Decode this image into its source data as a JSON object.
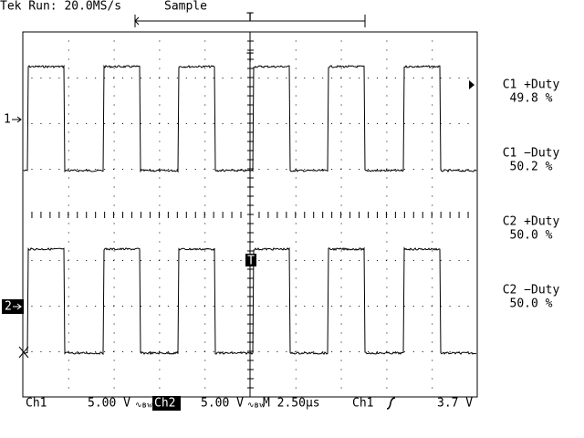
{
  "header": {
    "status": "Tek Run: 20.0MS/s",
    "mode": "Sample"
  },
  "markers": {
    "ch1": "1",
    "ch2": "2",
    "trigger": "T"
  },
  "measurements": [
    {
      "label": "C1 +Duty",
      "value": "49.8 %"
    },
    {
      "label": "C1 −Duty",
      "value": "50.2 %"
    },
    {
      "label": "C2 +Duty",
      "value": "50.0 %"
    },
    {
      "label": "C2 −Duty",
      "value": "50.0 %"
    }
  ],
  "footer": {
    "ch1_label": "Ch1",
    "ch1_scale": "5.00 V",
    "ch2_label": "Ch2",
    "ch2_scale": "5.00 V",
    "timebase": "M 2.50µs",
    "trigger_source": "Ch1",
    "trigger_level": "3.7 V"
  }
}
